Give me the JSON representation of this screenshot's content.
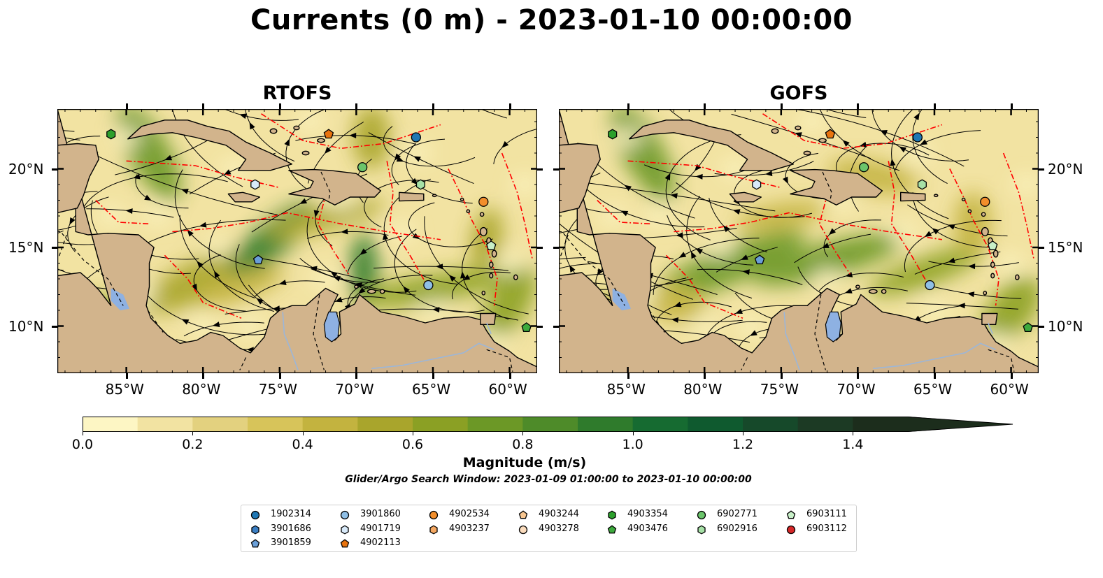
{
  "figure": {
    "title": "Currents (0 m) - 2023-01-10 00:00:00",
    "panels": [
      {
        "title": "RTOFS"
      },
      {
        "title": "GOFS"
      }
    ],
    "lon_ticks": [
      "85°W",
      "80°W",
      "75°W",
      "70°W",
      "65°W",
      "60°W"
    ],
    "lat_ticks": [
      "20°N",
      "15°N",
      "10°N"
    ],
    "lon_range": [
      -89.5,
      -58.2
    ],
    "lat_range": [
      7.0,
      23.8
    ]
  },
  "colorbar": {
    "label": "Magnitude (m/s)",
    "ticks": [
      "0.0",
      "0.2",
      "0.4",
      "0.6",
      "0.8",
      "1.0",
      "1.2",
      "1.4"
    ],
    "range": [
      0,
      1.5
    ],
    "colors": [
      "#fdf6c4",
      "#f2e3a2",
      "#e3d17f",
      "#d7c45a",
      "#c3b33f",
      "#a9a52c",
      "#8ba024",
      "#6c9826",
      "#4e8b29",
      "#2f7b2c",
      "#166b31",
      "#0f5a2f",
      "#16492a",
      "#1c3a24",
      "#1c2d1c"
    ],
    "extend": "max"
  },
  "search_window": "Glider/Argo Search Window: 2023-01-09 01:00:00 to 2023-01-10 00:00:00",
  "legend": {
    "items": [
      {
        "id": "1902314",
        "marker": "circle",
        "color": "#1f77b4"
      },
      {
        "id": "3901686",
        "marker": "hexagon",
        "color": "#3b7fc4"
      },
      {
        "id": "3901859",
        "marker": "pentagon",
        "color": "#6a9fd8"
      },
      {
        "id": "3901860",
        "marker": "circle",
        "color": "#8fbfe6"
      },
      {
        "id": "4901719",
        "marker": "hexagon",
        "color": "#d8eafa"
      },
      {
        "id": "4902113",
        "marker": "pentagon",
        "color": "#e8730e"
      },
      {
        "id": "4902534",
        "marker": "circle",
        "color": "#f28e2b"
      },
      {
        "id": "4903237",
        "marker": "hexagon",
        "color": "#f5a862"
      },
      {
        "id": "4903244",
        "marker": "pentagon",
        "color": "#f8c690"
      },
      {
        "id": "4903278",
        "marker": "circle",
        "color": "#fbdcbd"
      },
      {
        "id": "4903354",
        "marker": "hexagon",
        "color": "#2ca02c"
      },
      {
        "id": "4903476",
        "marker": "pentagon",
        "color": "#3daa3d"
      },
      {
        "id": "6902771",
        "marker": "circle",
        "color": "#6bc56b"
      },
      {
        "id": "6902916",
        "marker": "hexagon",
        "color": "#a6e0a6"
      },
      {
        "id": "6903111",
        "marker": "pentagon",
        "color": "#c8efc8"
      },
      {
        "id": "6903112",
        "marker": "circle",
        "color": "#d62728"
      }
    ]
  },
  "floats": [
    {
      "id": "6902771",
      "lon": -69.6,
      "lat": 20.1
    },
    {
      "id": "1902314",
      "lon": -66.1,
      "lat": 22.0
    },
    {
      "id": "4902113",
      "lon": -71.8,
      "lat": 22.2
    },
    {
      "id": "4903354",
      "lon": -86.0,
      "lat": 22.2
    },
    {
      "id": "4901719",
      "lon": -76.6,
      "lat": 19.0
    },
    {
      "id": "6902916",
      "lon": -65.8,
      "lat": 19.0
    },
    {
      "id": "4902534",
      "lon": -61.7,
      "lat": 17.9
    },
    {
      "id": "6903111",
      "lon": -61.2,
      "lat": 15.1
    },
    {
      "id": "3901859",
      "lon": -76.4,
      "lat": 14.2
    },
    {
      "id": "3901860",
      "lon": -65.3,
      "lat": 12.6
    },
    {
      "id": "4903476",
      "lon": -58.9,
      "lat": 9.9
    }
  ],
  "colors": {
    "land": "#d2b48c",
    "coastline": "#000000",
    "eez_line": "#ff0000",
    "lake": "#8eb1e2",
    "streamline": "#000000",
    "border_dashed": "#000000"
  }
}
